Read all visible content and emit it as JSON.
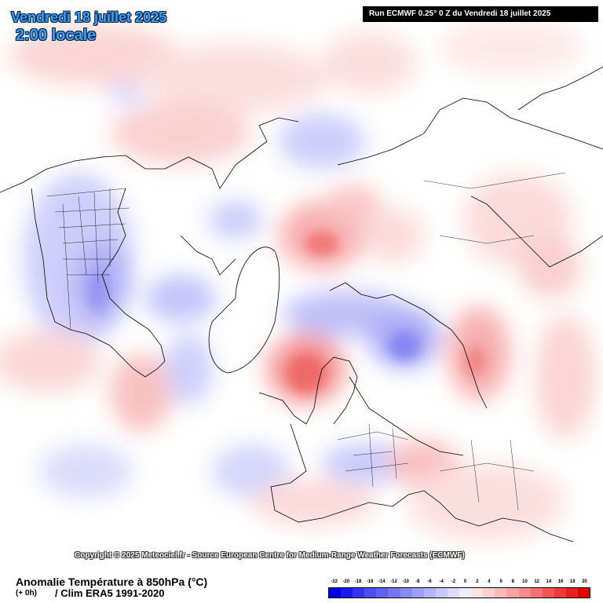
{
  "header": {
    "date": "Vendredi 18 juillet 2025",
    "time": "2:00 locale",
    "run": "Run ECMWF 0.25° 0 Z du Vendredi 18 juillet 2025"
  },
  "map": {
    "copyright": "Copyright © 2025 Meteociel.fr - Source European Centre for Medium-Range Weather Forecasts (ECMWF)"
  },
  "footer": {
    "parameter": "Anomalie Température à 850hPa (°C)",
    "lead": "(+ 0h)",
    "climatology": "/ Clim ERA5 1991-2020"
  },
  "scale": {
    "labels": [
      "-22",
      "-20",
      "-18",
      "-16",
      "-14",
      "-12",
      "-10",
      "-8",
      "-6",
      "-4",
      "-2",
      "0",
      "2",
      "4",
      "6",
      "8",
      "10",
      "12",
      "14",
      "16",
      "18",
      "20"
    ],
    "colors": [
      "#0000e6",
      "#1a1aec",
      "#3333f0",
      "#4d4df2",
      "#6060f4",
      "#7575f6",
      "#8a8af7",
      "#a0a0f8",
      "#b4b4fa",
      "#c8c8fb",
      "#dcdcfc",
      "#eeeefd",
      "#fde4e4",
      "#fcd0d0",
      "#fbbaba",
      "#f9a2a2",
      "#f78a8a",
      "#f57070",
      "#f25555",
      "#ee3a3a",
      "#e81e1e",
      "#e20000"
    ]
  }
}
